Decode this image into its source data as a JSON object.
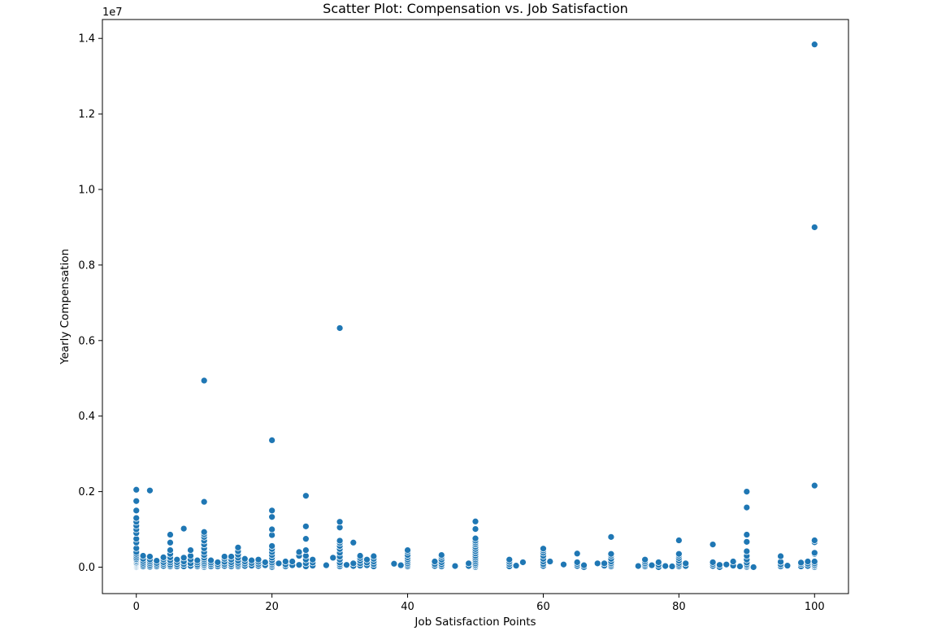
{
  "chart_data": {
    "type": "scatter",
    "title": "Scatter Plot: Compensation vs. Job Satisfaction",
    "xlabel": "Job Satisfaction Points",
    "ylabel": "Yearly Compensation",
    "y_offset_label": "1e7",
    "y_scale_factor": 10000000,
    "xlim": [
      -5,
      105
    ],
    "ylim": [
      -700000,
      14500000
    ],
    "x_ticks": [
      0,
      20,
      40,
      60,
      80,
      100
    ],
    "x_tick_labels": [
      "0",
      "20",
      "40",
      "60",
      "80",
      "100"
    ],
    "y_ticks": [
      0,
      2000000,
      4000000,
      6000000,
      8000000,
      10000000,
      12000000,
      14000000
    ],
    "y_tick_labels": [
      "0.0",
      "0.2",
      "0.4",
      "0.6",
      "0.8",
      "1.0",
      "1.2",
      "1.4"
    ],
    "grid": false,
    "color": "#1f77b4",
    "points": [
      [
        0,
        0
      ],
      [
        0,
        20000
      ],
      [
        0,
        40000
      ],
      [
        0,
        60000
      ],
      [
        0,
        80000
      ],
      [
        0,
        100000
      ],
      [
        0,
        120000
      ],
      [
        0,
        150000
      ],
      [
        0,
        180000
      ],
      [
        0,
        210000
      ],
      [
        0,
        250000
      ],
      [
        0,
        300000
      ],
      [
        0,
        350000
      ],
      [
        0,
        400000
      ],
      [
        0,
        500000
      ],
      [
        0,
        650000
      ],
      [
        0,
        750000
      ],
      [
        0,
        900000
      ],
      [
        0,
        1000000
      ],
      [
        0,
        1100000
      ],
      [
        0,
        1200000
      ],
      [
        0,
        1300000
      ],
      [
        0,
        1500000
      ],
      [
        0,
        1750000
      ],
      [
        0,
        2050000
      ],
      [
        1,
        20000
      ],
      [
        1,
        60000
      ],
      [
        1,
        110000
      ],
      [
        1,
        160000
      ],
      [
        1,
        220000
      ],
      [
        1,
        300000
      ],
      [
        2,
        10000
      ],
      [
        2,
        50000
      ],
      [
        2,
        100000
      ],
      [
        2,
        150000
      ],
      [
        2,
        200000
      ],
      [
        2,
        280000
      ],
      [
        2,
        2030000
      ],
      [
        3,
        20000
      ],
      [
        3,
        60000
      ],
      [
        3,
        110000
      ],
      [
        3,
        170000
      ],
      [
        4,
        30000
      ],
      [
        4,
        80000
      ],
      [
        4,
        130000
      ],
      [
        4,
        200000
      ],
      [
        4,
        260000
      ],
      [
        5,
        20000
      ],
      [
        5,
        60000
      ],
      [
        5,
        120000
      ],
      [
        5,
        180000
      ],
      [
        5,
        260000
      ],
      [
        5,
        350000
      ],
      [
        5,
        450000
      ],
      [
        5,
        650000
      ],
      [
        5,
        860000
      ],
      [
        6,
        20000
      ],
      [
        6,
        70000
      ],
      [
        6,
        130000
      ],
      [
        6,
        200000
      ],
      [
        7,
        20000
      ],
      [
        7,
        80000
      ],
      [
        7,
        150000
      ],
      [
        7,
        250000
      ],
      [
        7,
        1020000
      ],
      [
        8,
        30000
      ],
      [
        8,
        100000
      ],
      [
        8,
        200000
      ],
      [
        8,
        300000
      ],
      [
        8,
        450000
      ],
      [
        9,
        20000
      ],
      [
        9,
        60000
      ],
      [
        9,
        120000
      ],
      [
        9,
        180000
      ],
      [
        10,
        0
      ],
      [
        10,
        30000
      ],
      [
        10,
        60000
      ],
      [
        10,
        100000
      ],
      [
        10,
        150000
      ],
      [
        10,
        200000
      ],
      [
        10,
        250000
      ],
      [
        10,
        320000
      ],
      [
        10,
        400000
      ],
      [
        10,
        500000
      ],
      [
        10,
        600000
      ],
      [
        10,
        700000
      ],
      [
        10,
        800000
      ],
      [
        10,
        870000
      ],
      [
        10,
        930000
      ],
      [
        10,
        1730000
      ],
      [
        10,
        4940000
      ],
      [
        11,
        20000
      ],
      [
        11,
        70000
      ],
      [
        11,
        120000
      ],
      [
        11,
        180000
      ],
      [
        12,
        20000
      ],
      [
        12,
        70000
      ],
      [
        12,
        130000
      ],
      [
        13,
        30000
      ],
      [
        13,
        80000
      ],
      [
        13,
        140000
      ],
      [
        13,
        220000
      ],
      [
        13,
        280000
      ],
      [
        14,
        20000
      ],
      [
        14,
        70000
      ],
      [
        14,
        130000
      ],
      [
        14,
        200000
      ],
      [
        14,
        280000
      ],
      [
        15,
        20000
      ],
      [
        15,
        60000
      ],
      [
        15,
        110000
      ],
      [
        15,
        170000
      ],
      [
        15,
        250000
      ],
      [
        15,
        330000
      ],
      [
        15,
        420000
      ],
      [
        15,
        520000
      ],
      [
        16,
        30000
      ],
      [
        16,
        90000
      ],
      [
        16,
        150000
      ],
      [
        16,
        220000
      ],
      [
        17,
        40000
      ],
      [
        17,
        110000
      ],
      [
        17,
        180000
      ],
      [
        18,
        30000
      ],
      [
        18,
        80000
      ],
      [
        18,
        140000
      ],
      [
        18,
        200000
      ],
      [
        19,
        50000
      ],
      [
        19,
        130000
      ],
      [
        20,
        0
      ],
      [
        20,
        40000
      ],
      [
        20,
        80000
      ],
      [
        20,
        120000
      ],
      [
        20,
        180000
      ],
      [
        20,
        250000
      ],
      [
        20,
        320000
      ],
      [
        20,
        400000
      ],
      [
        20,
        480000
      ],
      [
        20,
        560000
      ],
      [
        20,
        850000
      ],
      [
        20,
        1000000
      ],
      [
        20,
        1330000
      ],
      [
        20,
        1500000
      ],
      [
        20,
        3360000
      ],
      [
        21,
        100000
      ],
      [
        22,
        20000
      ],
      [
        22,
        70000
      ],
      [
        22,
        150000
      ],
      [
        23,
        50000
      ],
      [
        23,
        150000
      ],
      [
        24,
        60000
      ],
      [
        24,
        300000
      ],
      [
        24,
        400000
      ],
      [
        25,
        20000
      ],
      [
        25,
        100000
      ],
      [
        25,
        200000
      ],
      [
        25,
        300000
      ],
      [
        25,
        450000
      ],
      [
        25,
        750000
      ],
      [
        25,
        1080000
      ],
      [
        25,
        1890000
      ],
      [
        26,
        40000
      ],
      [
        26,
        120000
      ],
      [
        26,
        200000
      ],
      [
        28,
        50000
      ],
      [
        29,
        250000
      ],
      [
        30,
        20000
      ],
      [
        30,
        70000
      ],
      [
        30,
        120000
      ],
      [
        30,
        200000
      ],
      [
        30,
        280000
      ],
      [
        30,
        380000
      ],
      [
        30,
        480000
      ],
      [
        30,
        560000
      ],
      [
        30,
        640000
      ],
      [
        30,
        700000
      ],
      [
        30,
        1050000
      ],
      [
        30,
        1200000
      ],
      [
        30,
        6330000
      ],
      [
        31,
        60000
      ],
      [
        32,
        30000
      ],
      [
        32,
        100000
      ],
      [
        32,
        650000
      ],
      [
        33,
        40000
      ],
      [
        33,
        100000
      ],
      [
        33,
        170000
      ],
      [
        33,
        240000
      ],
      [
        33,
        300000
      ],
      [
        34,
        50000
      ],
      [
        34,
        120000
      ],
      [
        34,
        200000
      ],
      [
        35,
        20000
      ],
      [
        35,
        80000
      ],
      [
        35,
        150000
      ],
      [
        35,
        220000
      ],
      [
        35,
        290000
      ],
      [
        38,
        90000
      ],
      [
        39,
        50000
      ],
      [
        40,
        20000
      ],
      [
        40,
        60000
      ],
      [
        40,
        100000
      ],
      [
        40,
        150000
      ],
      [
        40,
        200000
      ],
      [
        40,
        260000
      ],
      [
        40,
        320000
      ],
      [
        40,
        400000
      ],
      [
        40,
        450000
      ],
      [
        44,
        30000
      ],
      [
        44,
        80000
      ],
      [
        44,
        150000
      ],
      [
        45,
        20000
      ],
      [
        45,
        70000
      ],
      [
        45,
        130000
      ],
      [
        45,
        200000
      ],
      [
        45,
        270000
      ],
      [
        45,
        320000
      ],
      [
        47,
        30000
      ],
      [
        49,
        30000
      ],
      [
        49,
        100000
      ],
      [
        50,
        0
      ],
      [
        50,
        30000
      ],
      [
        50,
        60000
      ],
      [
        50,
        100000
      ],
      [
        50,
        150000
      ],
      [
        50,
        200000
      ],
      [
        50,
        250000
      ],
      [
        50,
        300000
      ],
      [
        50,
        360000
      ],
      [
        50,
        420000
      ],
      [
        50,
        480000
      ],
      [
        50,
        540000
      ],
      [
        50,
        600000
      ],
      [
        50,
        650000
      ],
      [
        50,
        700000
      ],
      [
        50,
        760000
      ],
      [
        50,
        1010000
      ],
      [
        50,
        1210000
      ],
      [
        55,
        20000
      ],
      [
        55,
        80000
      ],
      [
        55,
        140000
      ],
      [
        55,
        200000
      ],
      [
        56,
        40000
      ],
      [
        57,
        130000
      ],
      [
        60,
        30000
      ],
      [
        60,
        80000
      ],
      [
        60,
        150000
      ],
      [
        60,
        220000
      ],
      [
        60,
        300000
      ],
      [
        60,
        380000
      ],
      [
        60,
        440000
      ],
      [
        60,
        490000
      ],
      [
        61,
        150000
      ],
      [
        63,
        70000
      ],
      [
        65,
        30000
      ],
      [
        65,
        80000
      ],
      [
        65,
        130000
      ],
      [
        65,
        360000
      ],
      [
        66,
        0
      ],
      [
        66,
        50000
      ],
      [
        68,
        100000
      ],
      [
        69,
        40000
      ],
      [
        69,
        100000
      ],
      [
        70,
        20000
      ],
      [
        70,
        60000
      ],
      [
        70,
        100000
      ],
      [
        70,
        150000
      ],
      [
        70,
        220000
      ],
      [
        70,
        300000
      ],
      [
        70,
        350000
      ],
      [
        70,
        800000
      ],
      [
        74,
        30000
      ],
      [
        75,
        20000
      ],
      [
        75,
        60000
      ],
      [
        75,
        100000
      ],
      [
        75,
        150000
      ],
      [
        75,
        200000
      ],
      [
        76,
        50000
      ],
      [
        77,
        0
      ],
      [
        77,
        60000
      ],
      [
        77,
        130000
      ],
      [
        78,
        30000
      ],
      [
        79,
        20000
      ],
      [
        80,
        20000
      ],
      [
        80,
        60000
      ],
      [
        80,
        110000
      ],
      [
        80,
        170000
      ],
      [
        80,
        240000
      ],
      [
        80,
        300000
      ],
      [
        80,
        350000
      ],
      [
        80,
        710000
      ],
      [
        81,
        30000
      ],
      [
        81,
        100000
      ],
      [
        85,
        30000
      ],
      [
        85,
        80000
      ],
      [
        85,
        130000
      ],
      [
        85,
        600000
      ],
      [
        86,
        0
      ],
      [
        86,
        60000
      ],
      [
        87,
        70000
      ],
      [
        88,
        40000
      ],
      [
        88,
        150000
      ],
      [
        89,
        20000
      ],
      [
        90,
        0
      ],
      [
        90,
        30000
      ],
      [
        90,
        70000
      ],
      [
        90,
        120000
      ],
      [
        90,
        200000
      ],
      [
        90,
        300000
      ],
      [
        90,
        420000
      ],
      [
        90,
        670000
      ],
      [
        90,
        860000
      ],
      [
        90,
        1580000
      ],
      [
        90,
        2000000
      ],
      [
        91,
        0
      ],
      [
        95,
        20000
      ],
      [
        95,
        70000
      ],
      [
        95,
        140000
      ],
      [
        95,
        290000
      ],
      [
        96,
        40000
      ],
      [
        98,
        20000
      ],
      [
        98,
        80000
      ],
      [
        98,
        120000
      ],
      [
        99,
        30000
      ],
      [
        99,
        90000
      ],
      [
        99,
        150000
      ],
      [
        100,
        0
      ],
      [
        100,
        30000
      ],
      [
        100,
        60000
      ],
      [
        100,
        100000
      ],
      [
        100,
        150000
      ],
      [
        100,
        350000
      ],
      [
        100,
        380000
      ],
      [
        100,
        660000
      ],
      [
        100,
        710000
      ],
      [
        100,
        2160000
      ],
      [
        100,
        9000000
      ],
      [
        100,
        13840000
      ]
    ]
  }
}
